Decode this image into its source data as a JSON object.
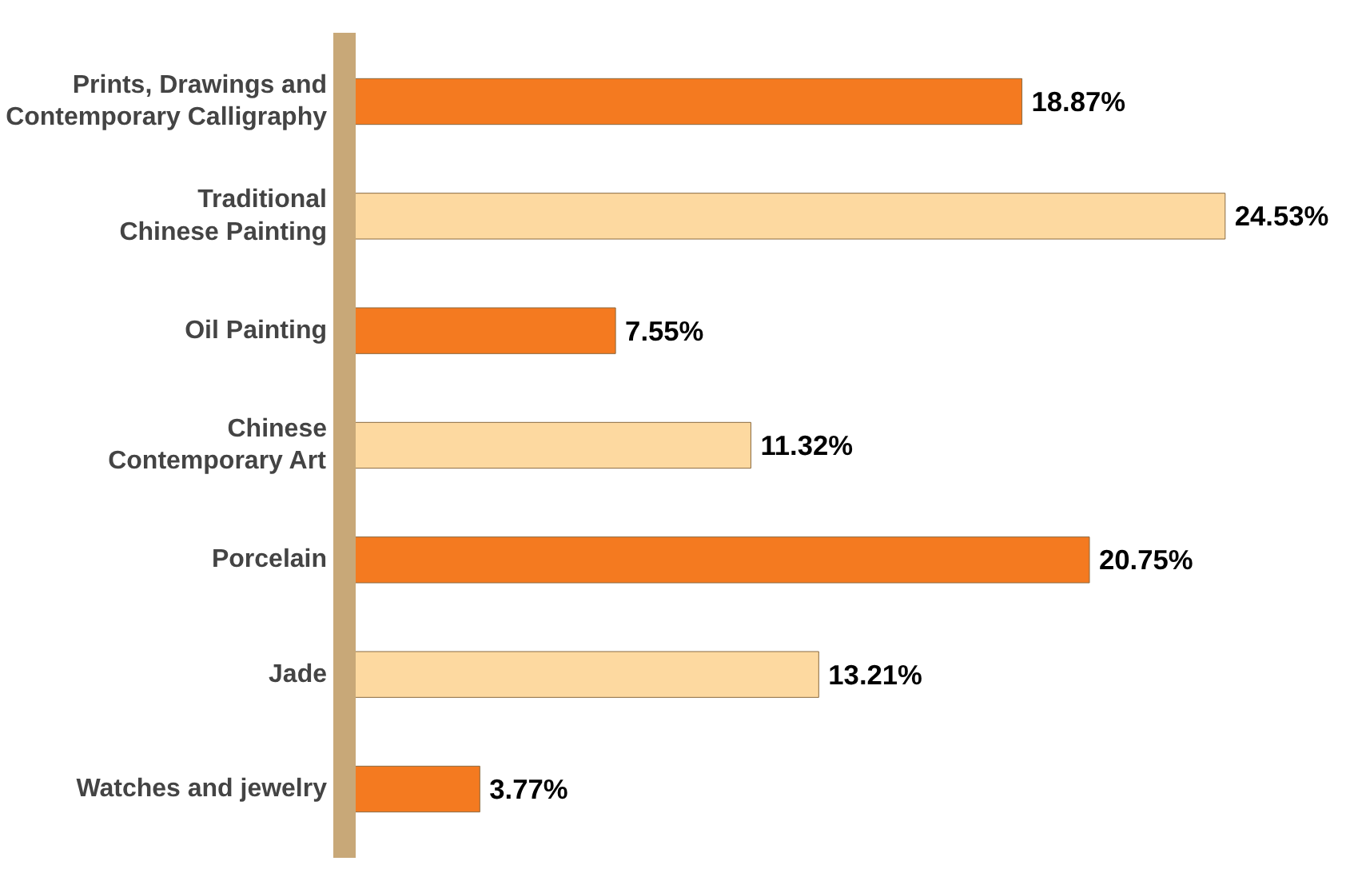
{
  "chart_data": {
    "type": "bar",
    "orientation": "horizontal",
    "categories": [
      "Prints, Drawings and\nContemporary Calligraphy",
      "Traditional\nChinese Painting",
      "Oil Painting",
      "Chinese\nContemporary Art",
      "Porcelain",
      "Jade",
      "Watches and jewelry"
    ],
    "values": [
      18.87,
      24.53,
      7.55,
      11.32,
      20.75,
      13.21,
      3.77
    ],
    "colors": [
      "#f47a20",
      "#fdd9a0",
      "#f47a20",
      "#fdd9a0",
      "#f47a20",
      "#fdd9a0",
      "#f47a20"
    ],
    "value_labels": [
      "18.87%",
      "24.53%",
      "7.55%",
      "11.32%",
      "20.75%",
      "13.21%",
      "3.77%"
    ]
  }
}
